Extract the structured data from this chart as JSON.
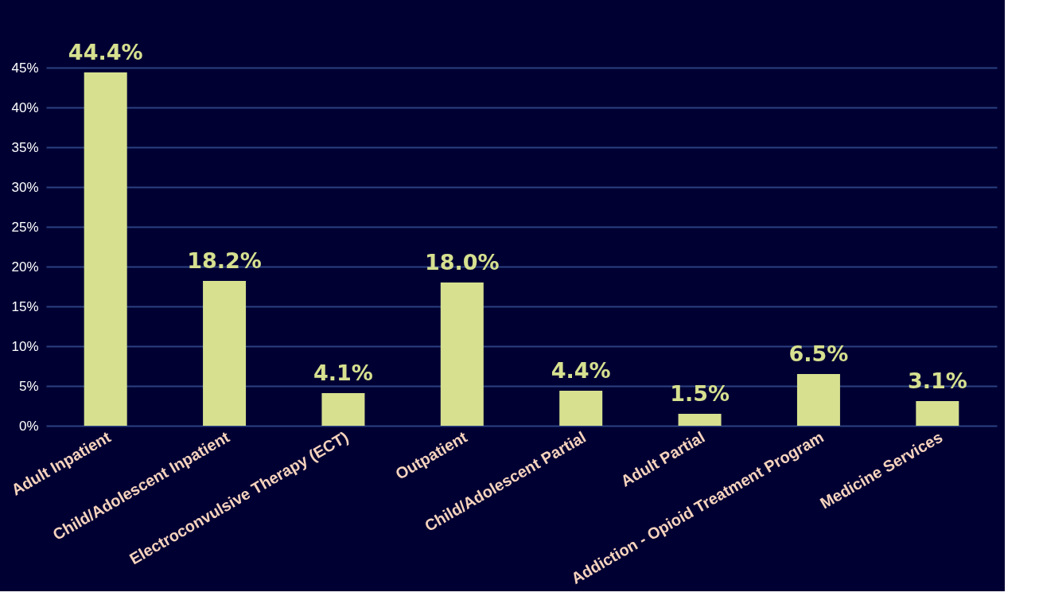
{
  "chart_data": {
    "type": "bar",
    "categories": [
      "Adult Inpatient",
      "Child/Adolescent Inpatient",
      "Electroconvulsive Therapy (ECT)",
      "Outpatient",
      "Child/Adolescent Partial",
      "Adult Partial",
      "Addiction - Opioid Treatment Program",
      "Medicine Services"
    ],
    "values": [
      44.4,
      18.2,
      4.1,
      18.0,
      4.4,
      1.5,
      6.5,
      3.1
    ],
    "value_labels": [
      "44.4%",
      "18.2%",
      "4.1%",
      "18.0%",
      "4.4%",
      "1.5%",
      "6.5%",
      "3.1%"
    ],
    "color": "#d6e08f",
    "ylim": [
      0,
      45
    ],
    "yticks": [
      {
        "value": 0,
        "label": "0%"
      },
      {
        "value": 5,
        "label": "5%"
      },
      {
        "value": 10,
        "label": "10%"
      },
      {
        "value": 15,
        "label": "15%"
      },
      {
        "value": 20,
        "label": "20%"
      },
      {
        "value": 25,
        "label": "25%"
      },
      {
        "value": 30,
        "label": "30%"
      },
      {
        "value": 35,
        "label": "35%"
      },
      {
        "value": 40,
        "label": "40%"
      },
      {
        "value": 45,
        "label": "45%"
      }
    ],
    "grid": "y"
  }
}
